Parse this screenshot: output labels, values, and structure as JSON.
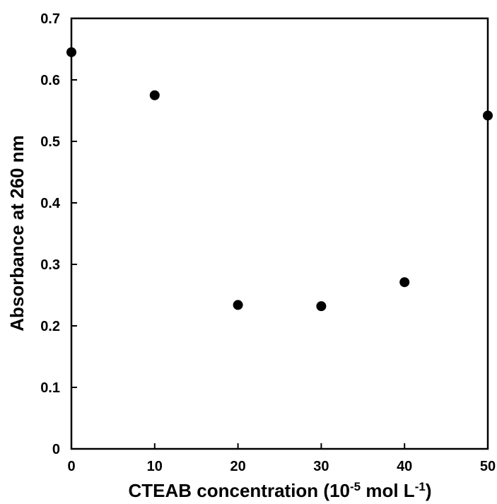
{
  "chart_data": {
    "type": "scatter",
    "xlabel": {
      "main": "CTEAB concentration (10",
      "sup1": "-5",
      "mid": " mol L",
      "sup2": "-1",
      "end": ")"
    },
    "ylabel": "Absorbance at 260 nm",
    "xlim": [
      0,
      50
    ],
    "ylim": [
      0,
      0.7
    ],
    "xticks": [
      0,
      10,
      20,
      30,
      40,
      50
    ],
    "yticks": [
      0,
      0.1,
      0.2,
      0.3,
      0.4,
      0.5,
      0.6,
      0.7
    ],
    "xtick_labels": [
      "0",
      "10",
      "20",
      "30",
      "40",
      "50"
    ],
    "ytick_labels": [
      "0",
      "0.1",
      "0.2",
      "0.3",
      "0.4",
      "0.5",
      "0.6",
      "0.7"
    ],
    "grid": false,
    "series": [
      {
        "x": [
          0,
          10,
          20,
          30,
          40,
          50
        ],
        "y": [
          0.645,
          0.575,
          0.234,
          0.232,
          0.271,
          0.542
        ],
        "color": "#000000"
      }
    ]
  }
}
